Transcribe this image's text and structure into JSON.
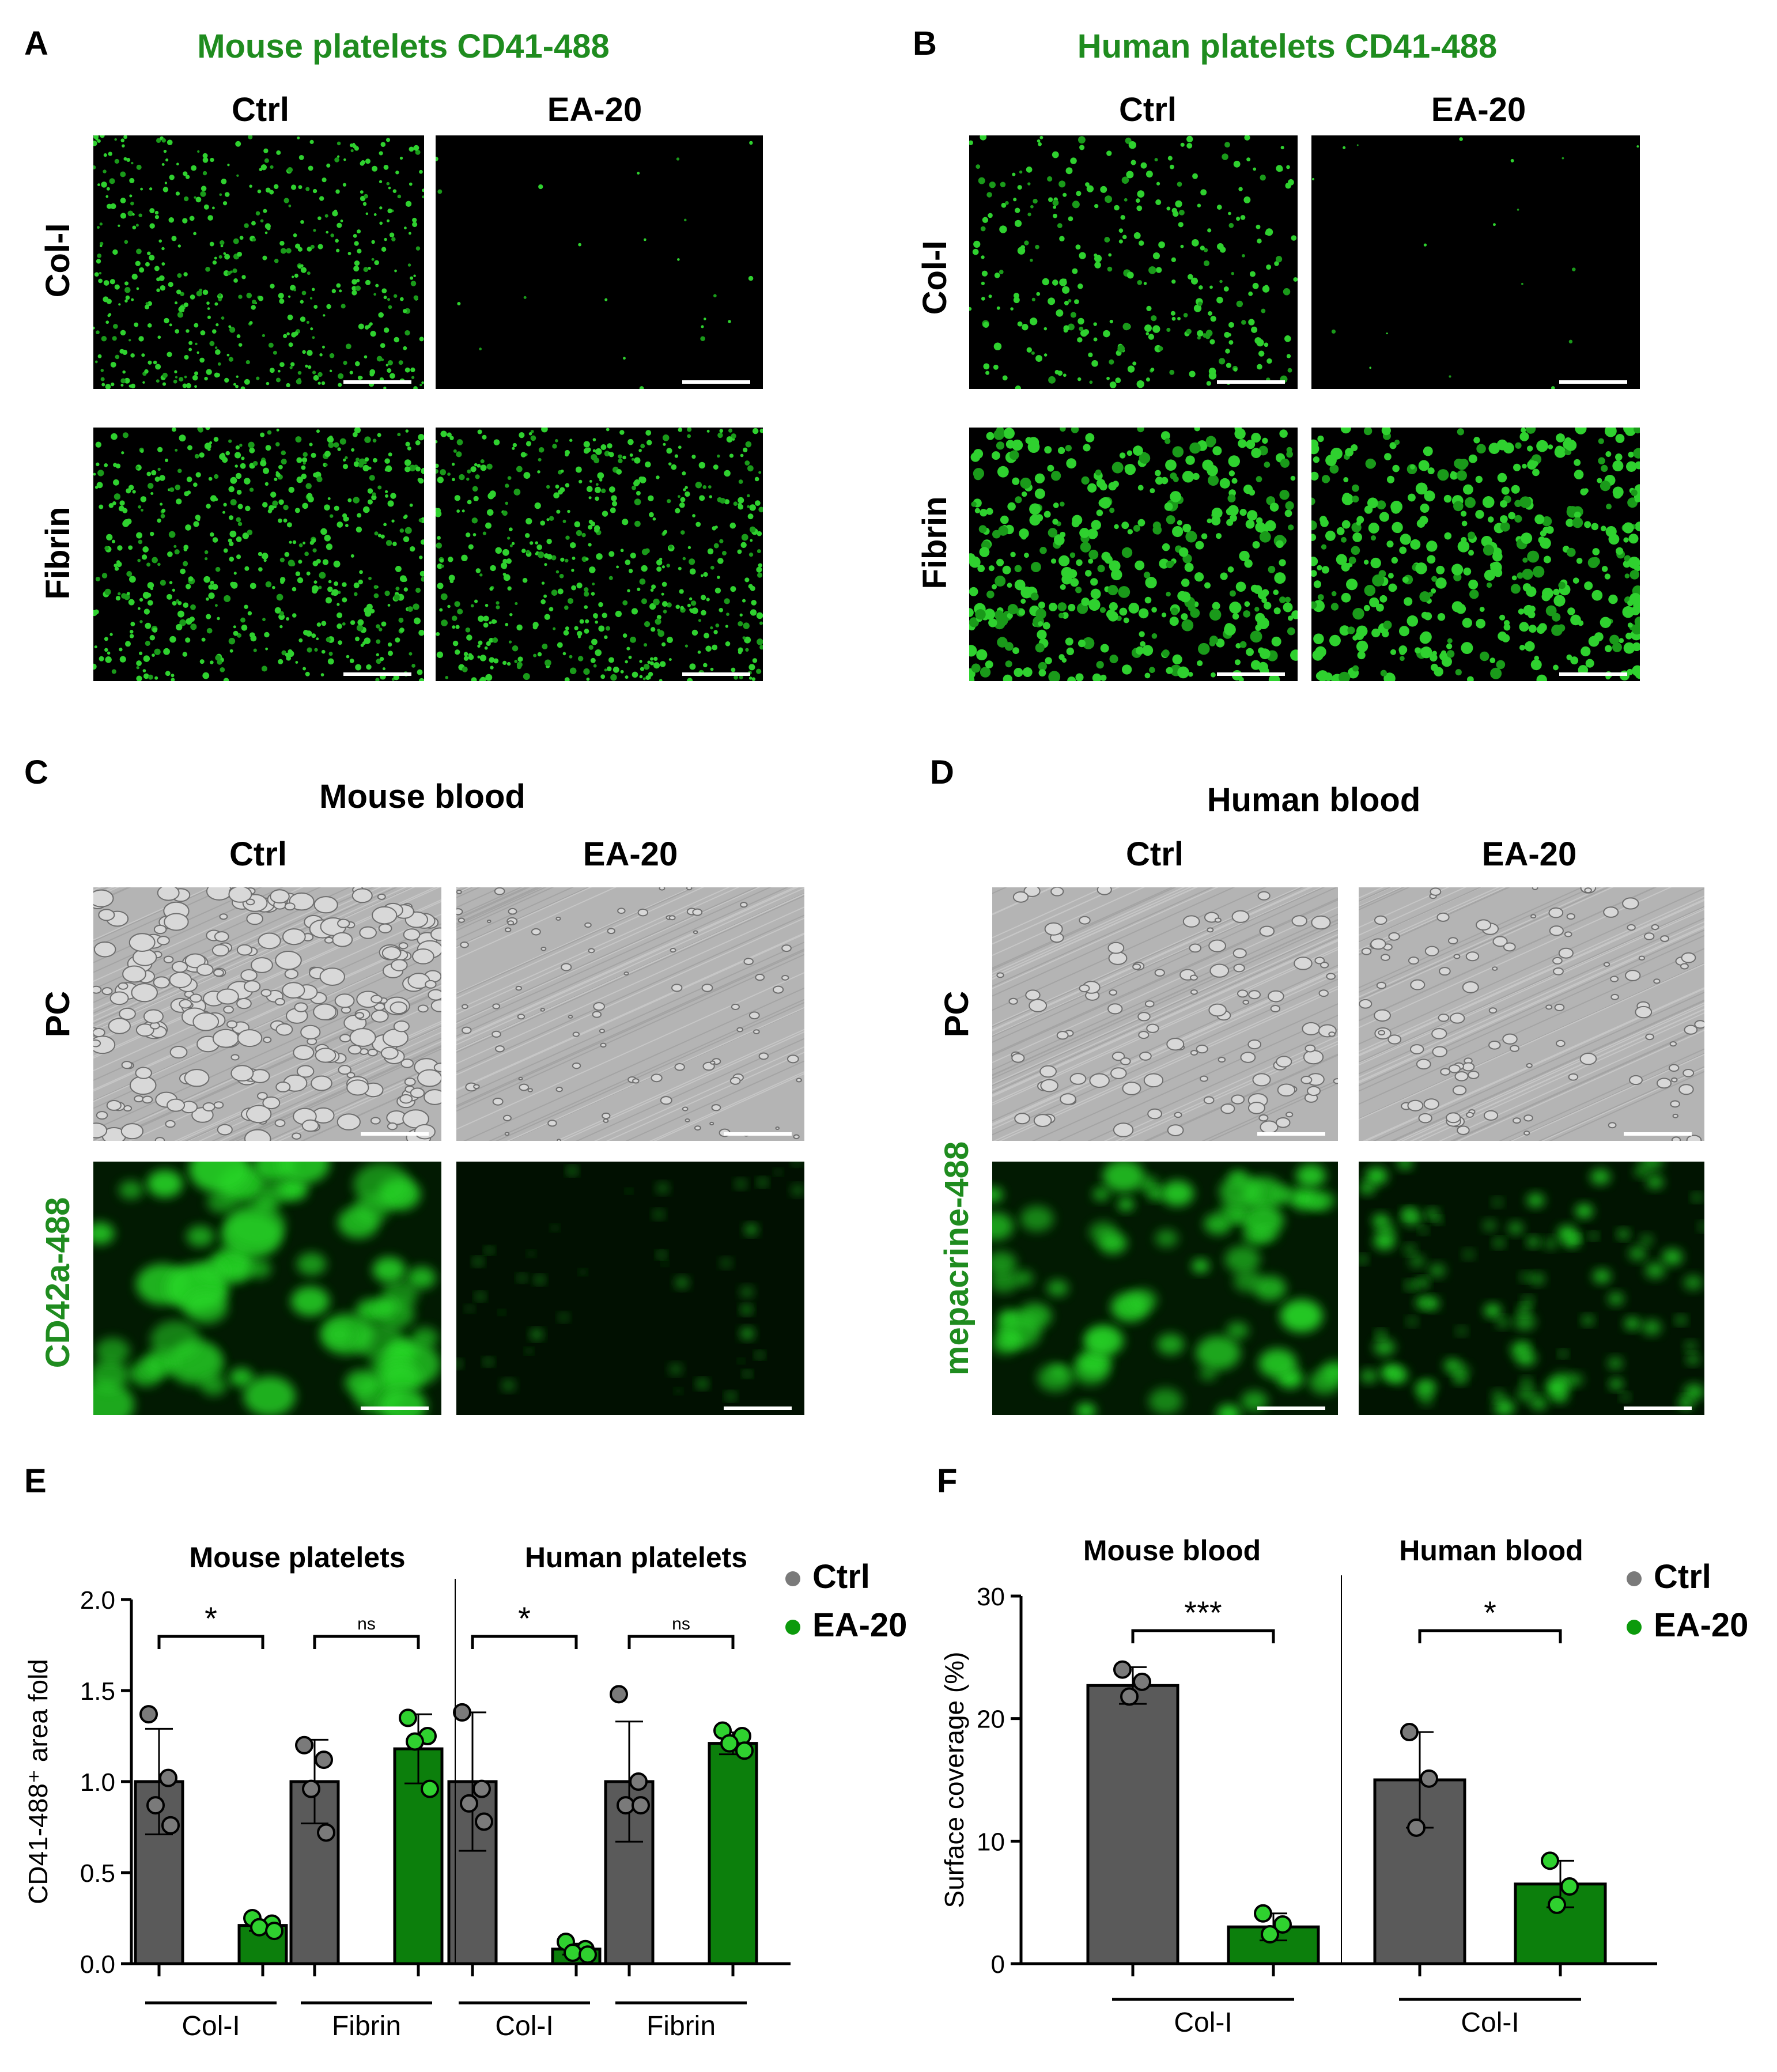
{
  "colors": {
    "accent_green": "#1f8c1f",
    "ctrl_bar": "#5a5a5a",
    "ea_bar": "#0c7f0c",
    "dot_green": "#2fd12f",
    "panel_black": "#000000",
    "pc_gray": "#b4b4b4"
  },
  "panel_A": {
    "letter": "A",
    "title": "Mouse platelets CD41-488",
    "col_labels": [
      "Ctrl",
      "EA-20"
    ],
    "row_labels": [
      "Col-I",
      "Fibrin"
    ]
  },
  "panel_B": {
    "letter": "B",
    "title": "Human platelets CD41-488",
    "col_labels": [
      "Ctrl",
      "EA-20"
    ],
    "row_labels": [
      "Col-I",
      "Fibrin"
    ]
  },
  "panel_C": {
    "letter": "C",
    "title": "Mouse blood",
    "col_labels": [
      "Ctrl",
      "EA-20"
    ],
    "row_labels": [
      "PC",
      "CD42a-488"
    ]
  },
  "panel_D": {
    "letter": "D",
    "title": "Human blood",
    "col_labels": [
      "Ctrl",
      "EA-20"
    ],
    "row_labels": [
      "PC",
      "mepacrine-488"
    ]
  },
  "chart_data": [
    {
      "panel": "E",
      "type": "bar",
      "ylabel": "CD41-488⁺ area fold",
      "ylim": [
        0,
        2.0
      ],
      "yticks": [
        "0.0",
        "0.5",
        "1.0",
        "1.5",
        "2.0"
      ],
      "group_titles": [
        "Mouse platelets",
        "Human platelets"
      ],
      "categories": [
        "Col-I",
        "Fibrin",
        "Col-I",
        "Fibrin"
      ],
      "legend": [
        "Ctrl",
        "EA-20"
      ],
      "legend_position": "top-right",
      "series": [
        {
          "name": "Ctrl",
          "values": [
            1.0,
            1.0,
            1.0,
            1.0
          ],
          "sd": [
            0.29,
            0.23,
            0.38,
            0.33
          ],
          "points": [
            [
              1.37,
              1.02,
              0.87,
              0.76
            ],
            [
              1.2,
              1.12,
              0.96,
              0.72
            ],
            [
              1.38,
              0.96,
              0.88,
              0.78
            ],
            [
              1.48,
              1.0,
              0.87,
              0.87
            ]
          ]
        },
        {
          "name": "EA-20",
          "values": [
            0.21,
            1.18,
            0.08,
            1.21
          ],
          "sd": [
            0.03,
            0.19,
            0.03,
            0.06
          ],
          "points": [
            [
              0.25,
              0.22,
              0.2,
              0.18
            ],
            [
              1.35,
              1.25,
              1.22,
              0.96
            ],
            [
              0.12,
              0.08,
              0.06,
              0.05
            ],
            [
              1.28,
              1.25,
              1.21,
              1.17
            ]
          ]
        }
      ],
      "significance": [
        "*",
        "ns",
        "*",
        "ns"
      ]
    },
    {
      "panel": "F",
      "type": "bar",
      "ylabel": "Surface coverage (%)",
      "ylim": [
        0,
        30
      ],
      "yticks": [
        "0",
        "10",
        "20",
        "30"
      ],
      "group_titles": [
        "Mouse blood",
        "Human blood"
      ],
      "categories": [
        "Col-I",
        "Col-I"
      ],
      "legend": [
        "Ctrl",
        "EA-20"
      ],
      "legend_position": "top-right",
      "series": [
        {
          "name": "Ctrl",
          "values": [
            22.7,
            15.0
          ],
          "sd": [
            1.5,
            3.9
          ],
          "points": [
            [
              24.0,
              23.0,
              21.8
            ],
            [
              18.9,
              15.1,
              11.1
            ]
          ]
        },
        {
          "name": "EA-20",
          "values": [
            3.0,
            6.5
          ],
          "sd": [
            1.1,
            1.9
          ],
          "points": [
            [
              4.1,
              3.2,
              2.4
            ],
            [
              8.4,
              6.3,
              4.8
            ]
          ]
        }
      ],
      "significance": [
        "***",
        "*"
      ]
    }
  ]
}
